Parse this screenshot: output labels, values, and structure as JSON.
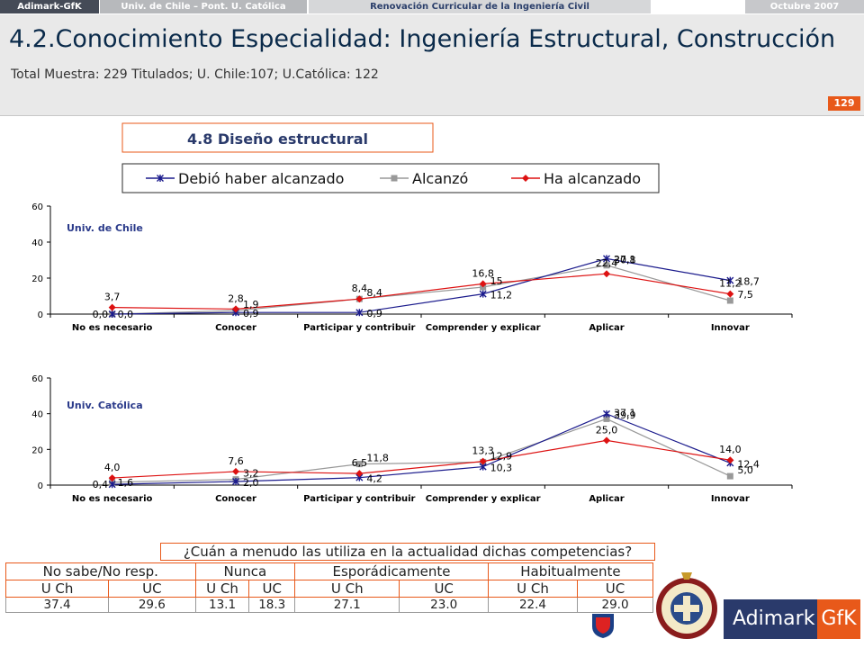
{
  "topbar": {
    "brand": "Adimark-GfK",
    "universities": "Univ. de Chile – Pont. U. Católica",
    "project": "Renovación Curricular de la Ingeniería Civil",
    "date": "Octubre 2007"
  },
  "header": {
    "title": "4.2.Conocimiento Especialidad: Ingeniería Estructural, Construcción",
    "subtitle": "Total Muestra: 229 Titulados; U. Chile:107; U.Católica: 122",
    "page_number": "129"
  },
  "section_title": "4.8 Diseño estructural",
  "legend": [
    "Debió haber alcanzado",
    "Alcanzó",
    "Ha alcanzado"
  ],
  "colors": {
    "debio": "#1a1a8c",
    "alcanzo": "#999999",
    "ha": "#dd1111",
    "accent": "#e8591a"
  },
  "chart_data": [
    {
      "type": "line",
      "panel_label": "Univ. de Chile",
      "categories": [
        "No es necesario",
        "Conocer",
        "Participar y contribuir",
        "Comprender y explicar",
        "Aplicar",
        "Innovar"
      ],
      "ylim": [
        0,
        60
      ],
      "yticks": [
        "0",
        "20",
        "40",
        "60"
      ],
      "series": [
        {
          "name": "Debió haber alcanzado",
          "values": [
            0.0,
            0.9,
            0.9,
            11.2,
            30.8,
            18.7
          ],
          "labels": [
            "0,0",
            "0,9",
            "0,9",
            "11,2",
            "30,8",
            "18,7"
          ]
        },
        {
          "name": "Alcanzó",
          "values": [
            0.0,
            1.9,
            8.4,
            15.0,
            27.1,
            7.5
          ],
          "labels": [
            "0,0",
            "1,9",
            "8,4",
            "15",
            "27,1",
            "7,5"
          ]
        },
        {
          "name": "Ha alcanzado",
          "values": [
            3.7,
            2.8,
            8.4,
            16.8,
            22.4,
            11.2
          ],
          "labels": [
            "3,7",
            "2,8",
            "8,4",
            "16,8",
            "22,4",
            "11,2"
          ]
        }
      ]
    },
    {
      "type": "line",
      "panel_label": "Univ. Católica",
      "categories": [
        "No es necesario",
        "Conocer",
        "Participar y contribuir",
        "Comprender y explicar",
        "Aplicar",
        "Innovar"
      ],
      "ylim": [
        0,
        60
      ],
      "yticks": [
        "0",
        "20",
        "40",
        "60"
      ],
      "series": [
        {
          "name": "Debió haber alcanzado",
          "values": [
            0.4,
            2.0,
            4.2,
            10.3,
            39.9,
            12.4
          ],
          "labels": [
            "0,4",
            "2,0",
            "4,2",
            "10,3",
            "39,9",
            "12,4"
          ]
        },
        {
          "name": "Alcanzó",
          "values": [
            1.6,
            3.2,
            11.8,
            12.9,
            37.1,
            5.0
          ],
          "labels": [
            "1,6",
            "3,2",
            "11,8",
            "12,9",
            "37,1",
            "5,0"
          ]
        },
        {
          "name": "Ha alcanzado",
          "values": [
            4.0,
            7.6,
            6.5,
            13.3,
            25.0,
            14.0
          ],
          "labels": [
            "4,0",
            "7,6",
            "6,5",
            "13,3",
            "25,0",
            "14,0"
          ]
        }
      ]
    }
  ],
  "table": {
    "question": "¿Cuán a menudo las utiliza en la actualidad dichas competencias?",
    "groups": [
      "No sabe/No resp.",
      "Nunca",
      "Esporádicamente",
      "Habitualmente"
    ],
    "subheaders": [
      "U Ch",
      "UC",
      "U Ch",
      "UC",
      "U Ch",
      "UC",
      "U Ch",
      "UC"
    ],
    "values": [
      "37.4",
      "29.6",
      "13.1",
      "18.3",
      "27.1",
      "23.0",
      "22.4",
      "29.0"
    ]
  },
  "logo": {
    "adimark": "Adimark",
    "gfk": "GfK"
  }
}
